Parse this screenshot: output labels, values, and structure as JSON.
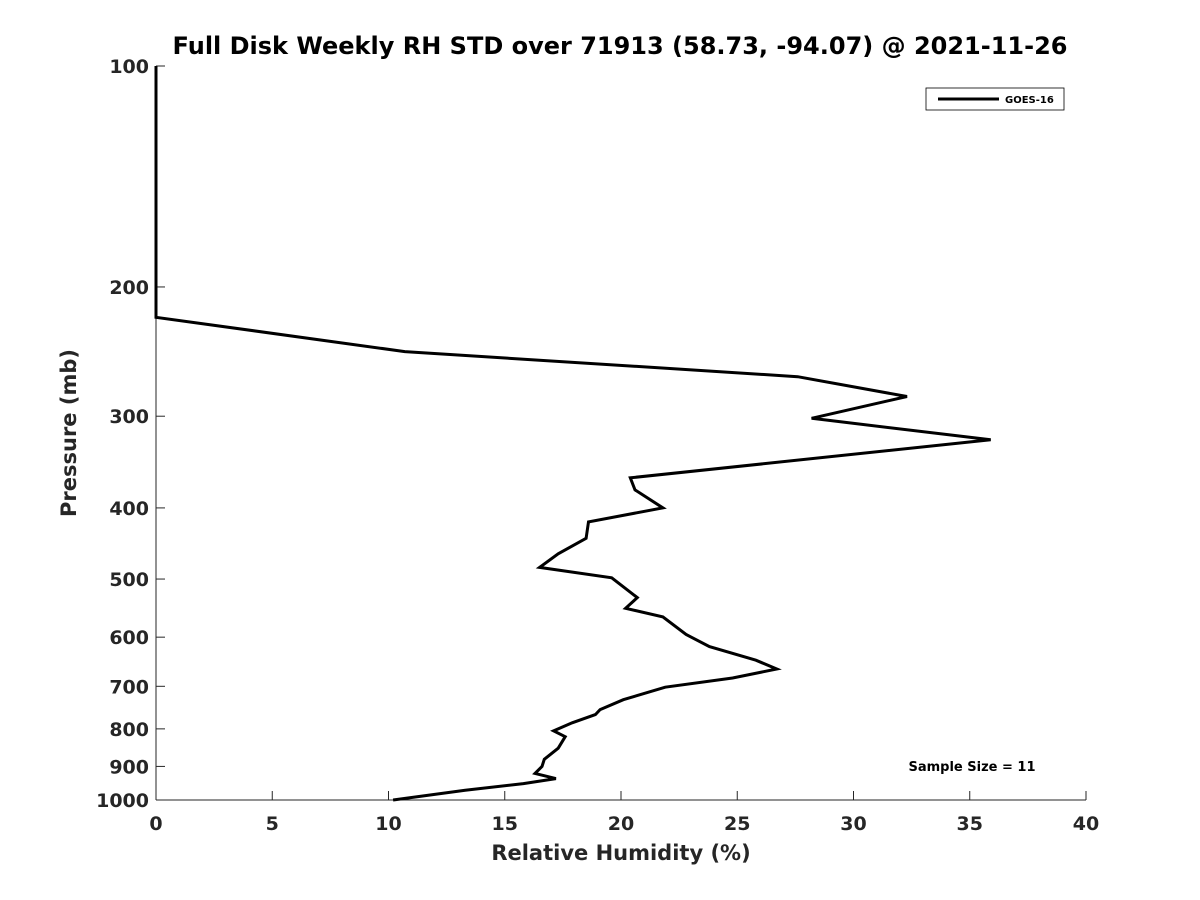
{
  "chart_data": {
    "type": "line",
    "title": "Full Disk Weekly RH STD over 71913 (58.73, -94.07) @ 2021-11-26",
    "xlabel": "Relative Humidity (%)",
    "ylabel": "Pressure (mb)",
    "xlim": [
      0,
      40
    ],
    "ylim": [
      100,
      1000
    ],
    "y_scale": "log",
    "y_inverted": true,
    "x_ticks": [
      0,
      5,
      10,
      15,
      20,
      25,
      30,
      35,
      40
    ],
    "x_tick_labels": [
      "0",
      "5",
      "10",
      "15",
      "20",
      "25",
      "30",
      "35",
      "40"
    ],
    "y_ticks": [
      100,
      200,
      300,
      400,
      500,
      600,
      700,
      800,
      900,
      1000
    ],
    "y_tick_labels": [
      "100",
      "200",
      "300",
      "400",
      "500",
      "600",
      "700",
      "800",
      "900",
      "1000"
    ],
    "grid": false,
    "legend_position": "top-right",
    "series": [
      {
        "name": "GOES-16",
        "color": "#000000",
        "x": [
          0,
          0,
          0,
          0,
          10.7,
          27.6,
          32.3,
          28.2,
          35.9,
          20.4,
          20.6,
          21.8,
          18.6,
          18.5,
          17.3,
          16.5,
          19.6,
          20.7,
          20.2,
          21.8,
          22.8,
          23.8,
          25.8,
          26.7,
          24.8,
          21.9,
          20.1,
          19.1,
          18.9,
          17.9,
          17.1,
          17.6,
          17.3,
          16.7,
          16.6,
          16.3,
          17.2,
          15.8,
          13.3,
          10.2
        ],
        "y": [
          100,
          150,
          200,
          220,
          245,
          265,
          282,
          302,
          323,
          364,
          378,
          400,
          418,
          440,
          462,
          482,
          498,
          530,
          548,
          563,
          595,
          618,
          645,
          663,
          682,
          702,
          730,
          753,
          765,
          785,
          805,
          820,
          850,
          880,
          900,
          920,
          935,
          950,
          970,
          1000
        ]
      }
    ],
    "annotations": [
      {
        "text": "Sample Size = 11",
        "position": "bottom-right"
      }
    ]
  }
}
